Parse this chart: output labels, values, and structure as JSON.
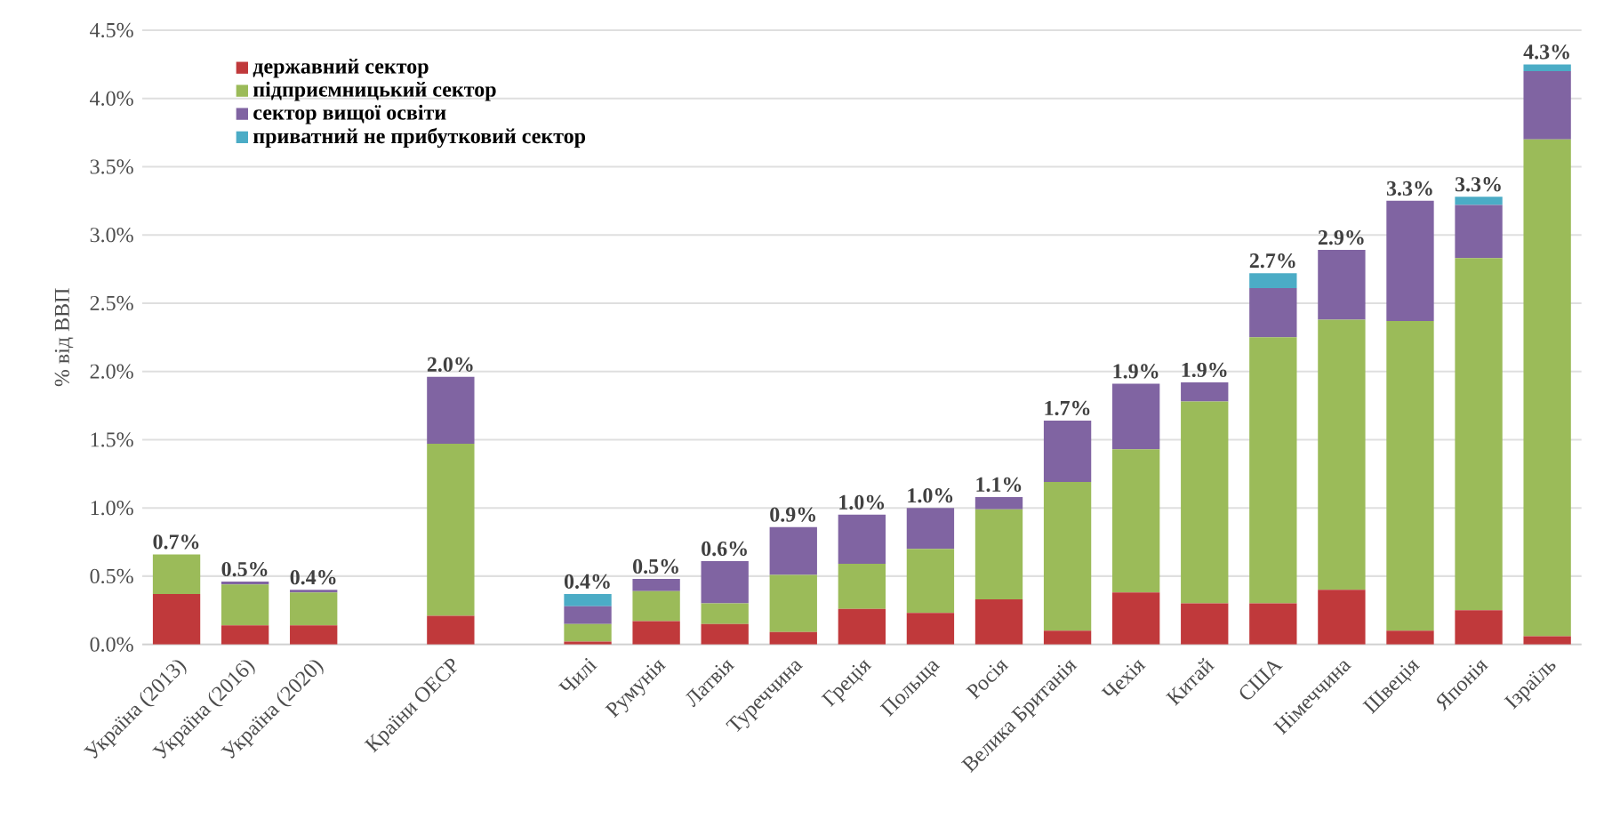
{
  "chart_data": {
    "type": "bar",
    "stacked": true,
    "ylabel": "% від ВВП",
    "categories": [
      "Україна (2013)",
      "Україна (2016)",
      "Україна (2020)",
      null,
      "Країни ОЕСР",
      null,
      "Чилі",
      "Румунія",
      "Латвія",
      "Туреччина",
      "Греція",
      "Польща",
      "Росія",
      "Велика Британія",
      "Чехія",
      "Китай",
      "США",
      "Німеччина",
      "Швеція",
      "Японія",
      "Ізраїль"
    ],
    "series": [
      {
        "name": "державний сектор",
        "color": "#c0393b",
        "values": [
          0.37,
          0.14,
          0.14,
          null,
          0.21,
          null,
          0.02,
          0.17,
          0.15,
          0.09,
          0.26,
          0.23,
          0.33,
          0.1,
          0.38,
          0.3,
          0.3,
          0.4,
          0.1,
          0.25,
          0.06
        ]
      },
      {
        "name": "підприємницький сектор",
        "color": "#9bbb59",
        "values": [
          0.29,
          0.3,
          0.24,
          null,
          1.26,
          null,
          0.13,
          0.22,
          0.15,
          0.42,
          0.33,
          0.47,
          0.66,
          1.09,
          1.05,
          1.48,
          1.95,
          1.98,
          2.27,
          2.58,
          3.64
        ]
      },
      {
        "name": "сектор вищої освіти",
        "color": "#8064a2",
        "values": [
          0,
          0.02,
          0.02,
          null,
          0.49,
          null,
          0.13,
          0.09,
          0.31,
          0.35,
          0.36,
          0.3,
          0.09,
          0.45,
          0.48,
          0.14,
          0.36,
          0.51,
          0.88,
          0.39,
          0.5
        ]
      },
      {
        "name": "приватний не прибутковий сектор",
        "color": "#4bacc6",
        "values": [
          0,
          0,
          0,
          null,
          0,
          null,
          0.09,
          0,
          0,
          0,
          0,
          0,
          0,
          0,
          0,
          0,
          0.11,
          0,
          0,
          0.06,
          0.05
        ]
      }
    ],
    "totals": [
      "0.7%",
      "0.5%",
      "0.4%",
      null,
      "2.0%",
      null,
      "0.4%",
      "0.5%",
      "0.6%",
      "0.9%",
      "1.0%",
      "1.0%",
      "1.1%",
      "1.7%",
      "1.9%",
      "1.9%",
      "2.7%",
      "2.9%",
      "3.3%",
      "3.3%",
      "4.3%"
    ],
    "ylim": [
      0,
      4.5
    ],
    "yticks": [
      {
        "value": 0,
        "label": "0.0%"
      },
      {
        "value": 0.5,
        "label": "0.5%"
      },
      {
        "value": 1,
        "label": "1.0%"
      },
      {
        "value": 1.5,
        "label": "1.5%"
      },
      {
        "value": 2,
        "label": "2.0%"
      },
      {
        "value": 2.5,
        "label": "2.5%"
      },
      {
        "value": 3,
        "label": "3.0%"
      },
      {
        "value": 3.5,
        "label": "3.5%"
      },
      {
        "value": 4,
        "label": "4.0%"
      },
      {
        "value": 4.5,
        "label": "4.5%"
      }
    ],
    "grid": "y",
    "legend": "top left"
  }
}
